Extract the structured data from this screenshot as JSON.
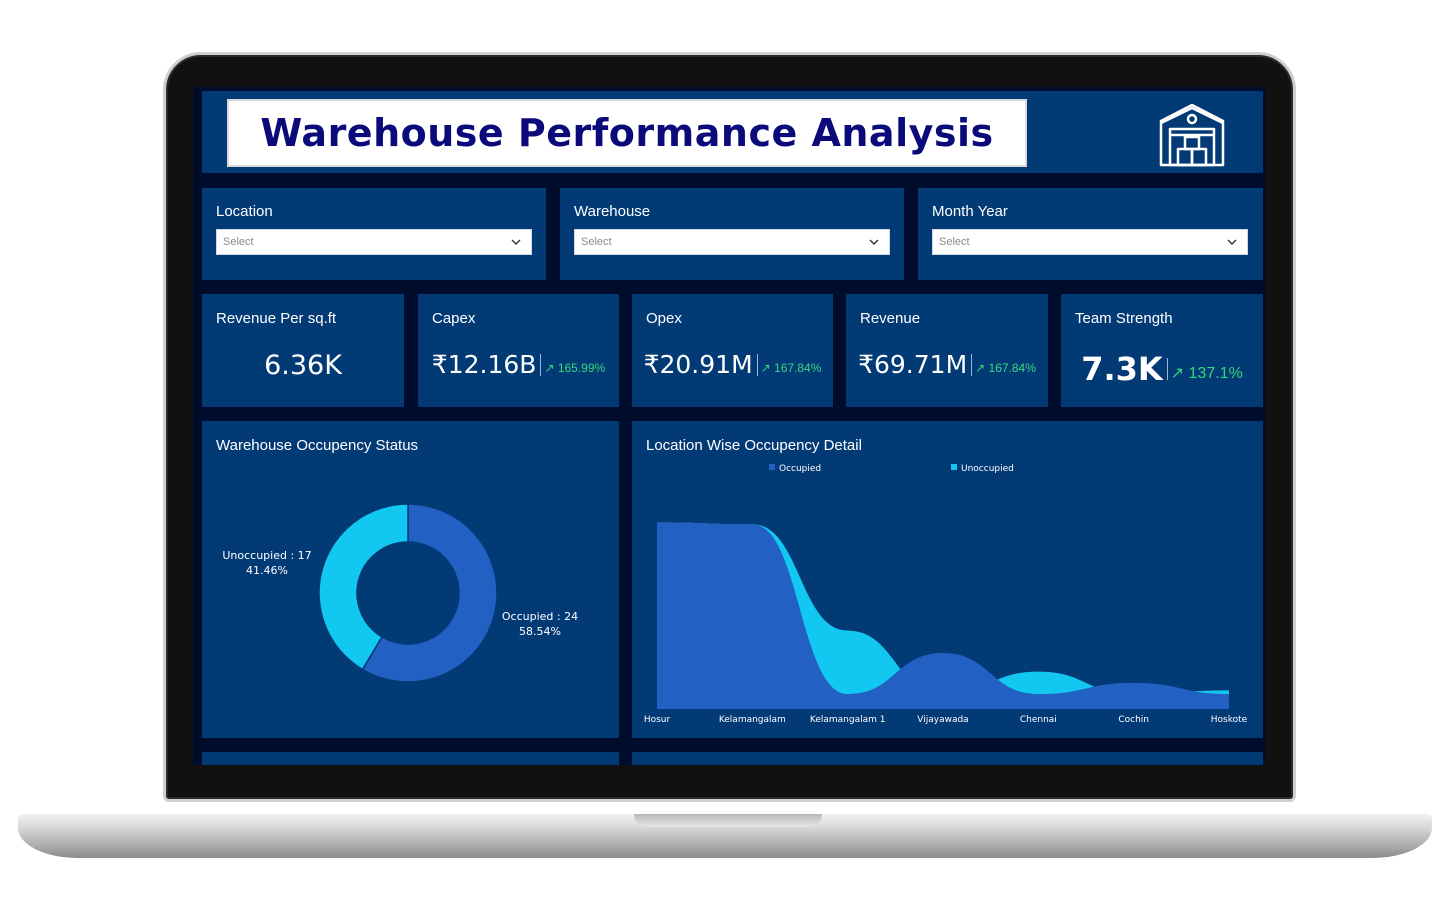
{
  "header": {
    "title": "Warehouse Performance Analysis",
    "icon": "warehouse-icon"
  },
  "filters": [
    {
      "label": "Location",
      "placeholder": "Select"
    },
    {
      "label": "Warehouse",
      "placeholder": "Select"
    },
    {
      "label": "Month Year",
      "placeholder": "Select"
    }
  ],
  "kpis": [
    {
      "label": "Revenue Per sq.ft",
      "value": "6.36K",
      "delta": ""
    },
    {
      "label": "Capex",
      "value": "₹12.16B",
      "delta": "↗ 165.99%"
    },
    {
      "label": "Opex",
      "value": "₹20.91M",
      "delta": "↗ 167.84%"
    },
    {
      "label": "Revenue",
      "value": "₹69.71M",
      "delta": "↗ 167.84%"
    },
    {
      "label": "Team Strength",
      "value": "7.3K",
      "delta": "↗ 137.1%"
    }
  ],
  "colors": {
    "panel": "#023a76",
    "occupied": "#2360c4",
    "unoccupied": "#12c8f0",
    "delta": "#37d67a"
  },
  "chart_data": [
    {
      "type": "pie",
      "title": "Warehouse Occupency Status",
      "slices": [
        {
          "name": "Occupied",
          "value": 24,
          "percent": "58.54%",
          "label": "Occupied : 24"
        },
        {
          "name": "Unoccupied",
          "value": 17,
          "percent": "41.46%",
          "label": "Unoccupied : 17"
        }
      ]
    },
    {
      "type": "area",
      "title": "Location Wise Occupency Detail",
      "categories": [
        "Hosur",
        "Kelamangalam",
        "Kelamangalam 1",
        "Vijayawada",
        "Chennai",
        "Cochin",
        "Hoskote"
      ],
      "series": [
        {
          "name": "Occupied",
          "values": [
            100,
            99,
            8,
            30,
            8,
            14,
            8
          ]
        },
        {
          "name": "Unoccupied",
          "values": [
            100,
            99,
            42,
            8,
            20,
            8,
            10
          ]
        }
      ],
      "ylim": [
        0,
        105
      ],
      "legend": "top"
    }
  ]
}
